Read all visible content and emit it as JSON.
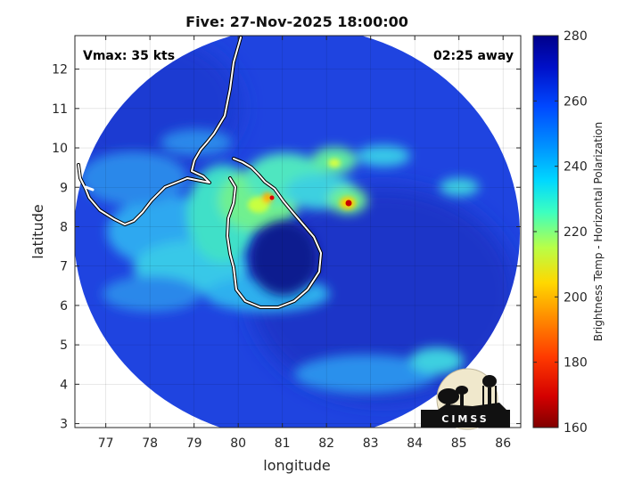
{
  "title": "Five: 27-Nov-2025 18:00:00",
  "vmax_label": "Vmax: 35 kts",
  "time_away_label": "02:25 away",
  "xlabel": "longitude",
  "ylabel": "latitude",
  "xticks": [
    77,
    78,
    79,
    80,
    81,
    82,
    83,
    84,
    85,
    86
  ],
  "yticks": [
    3,
    4,
    5,
    6,
    7,
    8,
    9,
    10,
    11,
    12
  ],
  "xlim": [
    76.3,
    86.4
  ],
  "ylim": [
    2.9,
    12.85
  ],
  "colorbar": {
    "label": "Brightness Temp - Horizontal Polarization",
    "ticks": [
      160,
      180,
      200,
      220,
      240,
      260,
      280
    ],
    "range": [
      160,
      280
    ]
  },
  "logo_text": "CIMSS",
  "colors": {
    "background_field": "#1f44e0",
    "coast": "#ffffff",
    "eye": "#0d1a8f"
  }
}
